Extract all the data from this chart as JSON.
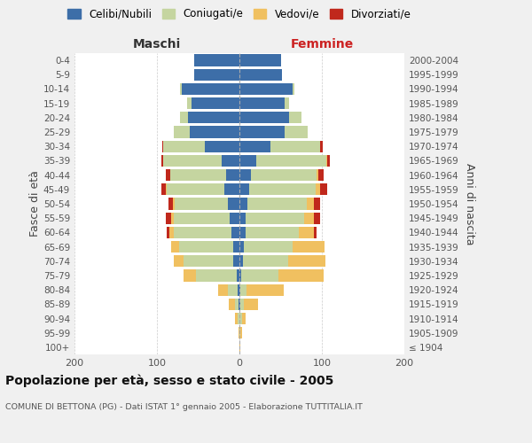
{
  "age_groups": [
    "100+",
    "95-99",
    "90-94",
    "85-89",
    "80-84",
    "75-79",
    "70-74",
    "65-69",
    "60-64",
    "55-59",
    "50-54",
    "45-49",
    "40-44",
    "35-39",
    "30-34",
    "25-29",
    "20-24",
    "15-19",
    "10-14",
    "5-9",
    "0-4"
  ],
  "birth_years": [
    "≤ 1904",
    "1905-1909",
    "1910-1914",
    "1915-1919",
    "1920-1924",
    "1925-1929",
    "1930-1934",
    "1935-1939",
    "1940-1944",
    "1945-1949",
    "1950-1954",
    "1955-1959",
    "1960-1964",
    "1965-1969",
    "1970-1974",
    "1975-1979",
    "1980-1984",
    "1985-1989",
    "1990-1994",
    "1995-1999",
    "2000-2004"
  ],
  "colors": {
    "celibi": "#3d6ea8",
    "coniugati": "#c5d5a0",
    "vedovi": "#f0c060",
    "divorziati": "#c0281c"
  },
  "maschi": {
    "celibi": [
      0,
      0,
      0,
      1,
      2,
      3,
      8,
      8,
      10,
      12,
      14,
      18,
      16,
      22,
      42,
      60,
      62,
      58,
      70,
      55,
      55
    ],
    "coniugati": [
      0,
      0,
      2,
      4,
      12,
      50,
      60,
      65,
      70,
      68,
      65,
      70,
      68,
      70,
      50,
      20,
      10,
      5,
      2,
      0,
      0
    ],
    "vedovi": [
      0,
      1,
      3,
      8,
      12,
      15,
      12,
      10,
      5,
      3,
      2,
      1,
      0,
      0,
      0,
      0,
      0,
      0,
      0,
      0,
      0
    ],
    "divorziati": [
      0,
      0,
      0,
      0,
      0,
      0,
      0,
      0,
      3,
      6,
      5,
      6,
      5,
      3,
      2,
      0,
      0,
      0,
      0,
      0,
      0
    ]
  },
  "femmine": {
    "celibi": [
      0,
      0,
      0,
      1,
      1,
      2,
      4,
      5,
      7,
      8,
      10,
      12,
      14,
      20,
      38,
      55,
      60,
      55,
      65,
      52,
      50
    ],
    "coniugati": [
      0,
      1,
      3,
      4,
      8,
      45,
      55,
      60,
      65,
      70,
      72,
      80,
      80,
      85,
      60,
      28,
      15,
      5,
      2,
      0,
      0
    ],
    "vedovi": [
      1,
      2,
      5,
      18,
      45,
      55,
      45,
      38,
      18,
      12,
      8,
      6,
      2,
      1,
      0,
      0,
      0,
      0,
      0,
      0,
      0
    ],
    "divorziati": [
      0,
      0,
      0,
      0,
      0,
      0,
      0,
      0,
      4,
      8,
      8,
      8,
      6,
      4,
      3,
      0,
      0,
      0,
      0,
      0,
      0
    ]
  },
  "title": "Popolazione per età, sesso e stato civile - 2005",
  "subtitle": "COMUNE DI BETTONA (PG) - Dati ISTAT 1° gennaio 2005 - Elaborazione TUTTITALIA.IT",
  "xlabel_left": "Maschi",
  "xlabel_right": "Femmine",
  "ylabel_left": "Fasce di età",
  "ylabel_right": "Anni di nascita",
  "xlim": 200,
  "legend_labels": [
    "Celibi/Nubili",
    "Coniugati/e",
    "Vedovi/e",
    "Divorziati/e"
  ],
  "bg_color": "#f0f0f0",
  "plot_bg": "#ffffff"
}
